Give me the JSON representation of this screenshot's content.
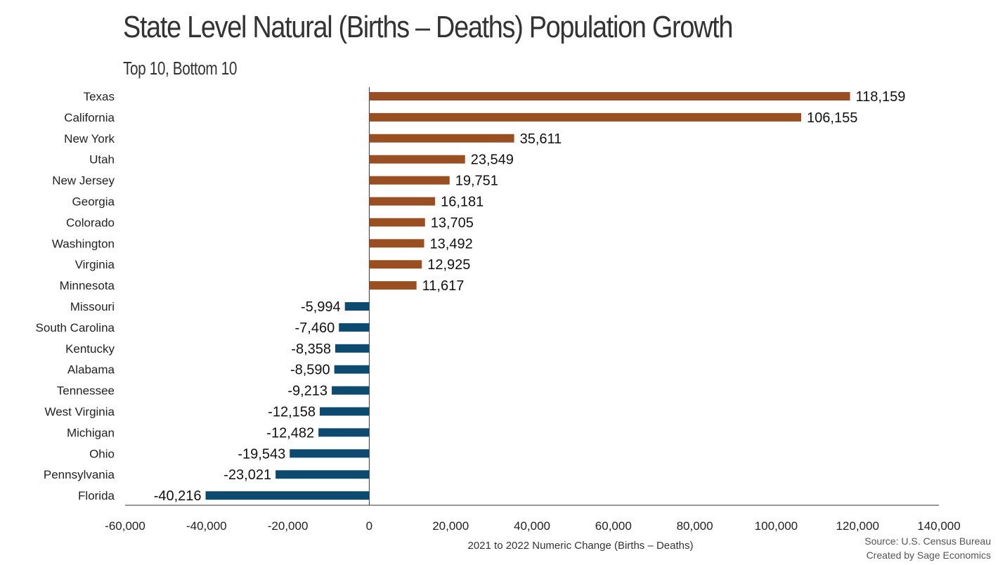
{
  "chart_data": {
    "type": "bar",
    "orientation": "horizontal",
    "title": "State Level Natural (Births – Deaths) Population Growth",
    "subtitle": "Top 10, Bottom 10",
    "xlabel": "2021 to 2022 Numeric Change (Births – Deaths)",
    "ylabel": "",
    "xlim": [
      -60000,
      140000
    ],
    "x_ticks": [
      -60000,
      -40000,
      -20000,
      0,
      20000,
      40000,
      60000,
      80000,
      100000,
      120000,
      140000
    ],
    "x_tick_labels": [
      "-60,000",
      "-40,000",
      "-20,000",
      "0",
      "20,000",
      "40,000",
      "60,000",
      "80,000",
      "100,000",
      "120,000",
      "140,000"
    ],
    "grid": false,
    "legend": "none",
    "categories": [
      "Texas",
      "California",
      "New York",
      "Utah",
      "New Jersey",
      "Georgia",
      "Colorado",
      "Washington",
      "Virginia",
      "Minnesota",
      "Missouri",
      "South Carolina",
      "Kentucky",
      "Alabama",
      "Tennessee",
      "West Virginia",
      "Michigan",
      "Ohio",
      "Pennsylvania",
      "Florida"
    ],
    "values": [
      118159,
      106155,
      35611,
      23549,
      19751,
      16181,
      13705,
      13492,
      12925,
      11617,
      -5994,
      -7460,
      -8358,
      -8590,
      -9213,
      -12158,
      -12482,
      -19543,
      -23021,
      -40216
    ],
    "value_labels": [
      "118,159",
      "106,155",
      "35,611",
      "23,549",
      "19,751",
      "16,181",
      "13,705",
      "13,492",
      "12,925",
      "11,617",
      "-5,994",
      "-7,460",
      "-8,358",
      "-8,590",
      "-9,213",
      "-12,158",
      "-12,482",
      "-19,543",
      "-23,021",
      "-40,216"
    ],
    "colors": {
      "positive": "#9a4f22",
      "negative": "#0d4a70"
    }
  },
  "source": {
    "line1": "Source: U.S. Census Bureau",
    "line2": "Created by Sage Economics"
  }
}
